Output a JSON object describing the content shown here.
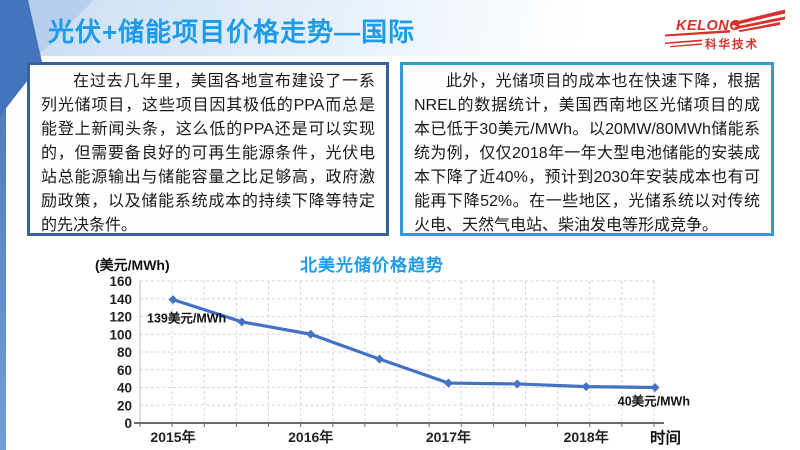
{
  "slide": {
    "title": "光伏+储能项目价格走势—国际",
    "logo": {
      "brand": "KELONG",
      "company": "科华技术"
    }
  },
  "left_box": {
    "text": "在过去几年里，美国各地宣布建设了一系列光储项目，这些项目因其极低的PPA而总是能登上新闻头条，这么低的PPA还是可以实现的，但需要备良好的可再生能源条件，光伏电站总能源输出与储能容量之比足够高，政府激励政策，以及储能系统成本的持续下降等特定的先决条件。"
  },
  "right_box": {
    "text": "此外，光储项目的成本也在快速下降，根据NREL的数据统计，美国西南地区光储项目的成本已低于30美元/MWh。以20MW/80MWh储能系统为例，仅仅2018年一年大型电池储能的安装成本下降了近40%，预计到2030年安装成本也有可能再下降52%。在一些地区，光储系统以对传统火电、天然气电站、柴油发电等形成竞争。"
  },
  "chart_data": {
    "type": "line",
    "title": "北美光储价格趋势",
    "ylabel": "(美元/MWh)",
    "xlabel": "时间",
    "x": [
      2015,
      2015.5,
      2016,
      2016.5,
      2017,
      2017.5,
      2018,
      2018.5
    ],
    "x_tick_labels": [
      "2015年",
      "2016年",
      "2017年",
      "2018年"
    ],
    "values": [
      139,
      114,
      100,
      72,
      45,
      44,
      41,
      40
    ],
    "ylim": [
      0,
      160
    ],
    "y_ticks": [
      0,
      20,
      40,
      60,
      80,
      100,
      120,
      140,
      160
    ],
    "grid": true,
    "legend": "none",
    "line_color": "#4472C4",
    "annotations": [
      {
        "text": "139美元/MWh",
        "point_index": 0
      },
      {
        "text": "40美元/MWh",
        "point_index": 7
      }
    ]
  },
  "colors": {
    "title_blue": "#1E9BE8",
    "logo_red": "#D6312B",
    "line_blue": "#4472C4",
    "leftbox_border": "#3A6199",
    "rightbox_border": "#2E9BD8",
    "strip_blue": "#4573B4"
  }
}
